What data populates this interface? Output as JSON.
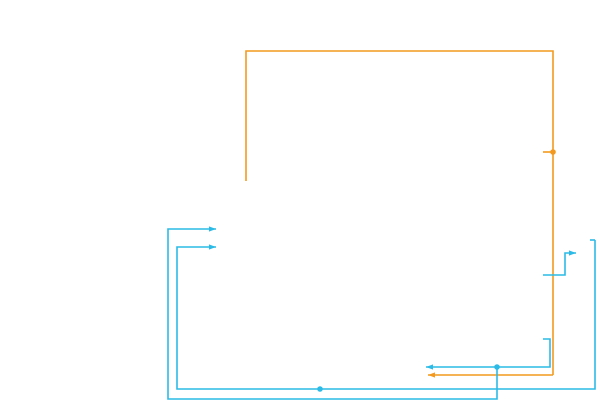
{
  "diagram": {
    "type": "wire-connectors",
    "colors": {
      "orange": "#f39a1e",
      "blue": "#2bbbe6",
      "background": "#ffffff"
    },
    "wires": [
      {
        "name": "orange-loop-wire",
        "color": "orange",
        "arrow": false
      },
      {
        "name": "orange-stub-wire",
        "color": "orange",
        "arrow": false
      },
      {
        "name": "orange-return-wire",
        "color": "orange",
        "arrow": true
      },
      {
        "name": "blue-outer-left-wire",
        "color": "blue",
        "arrow": true
      },
      {
        "name": "blue-inner-left-wire",
        "color": "blue",
        "arrow": true
      },
      {
        "name": "blue-right-up-wire",
        "color": "blue",
        "arrow": true
      },
      {
        "name": "blue-bottom-return-wire",
        "color": "blue",
        "arrow": true
      },
      {
        "name": "blue-far-right-wire",
        "color": "blue",
        "arrow": false
      }
    ],
    "junctions": [
      {
        "name": "orange-junction",
        "color": "orange"
      },
      {
        "name": "blue-junction-lower-right",
        "color": "blue"
      },
      {
        "name": "blue-junction-bottom",
        "color": "blue"
      }
    ]
  }
}
